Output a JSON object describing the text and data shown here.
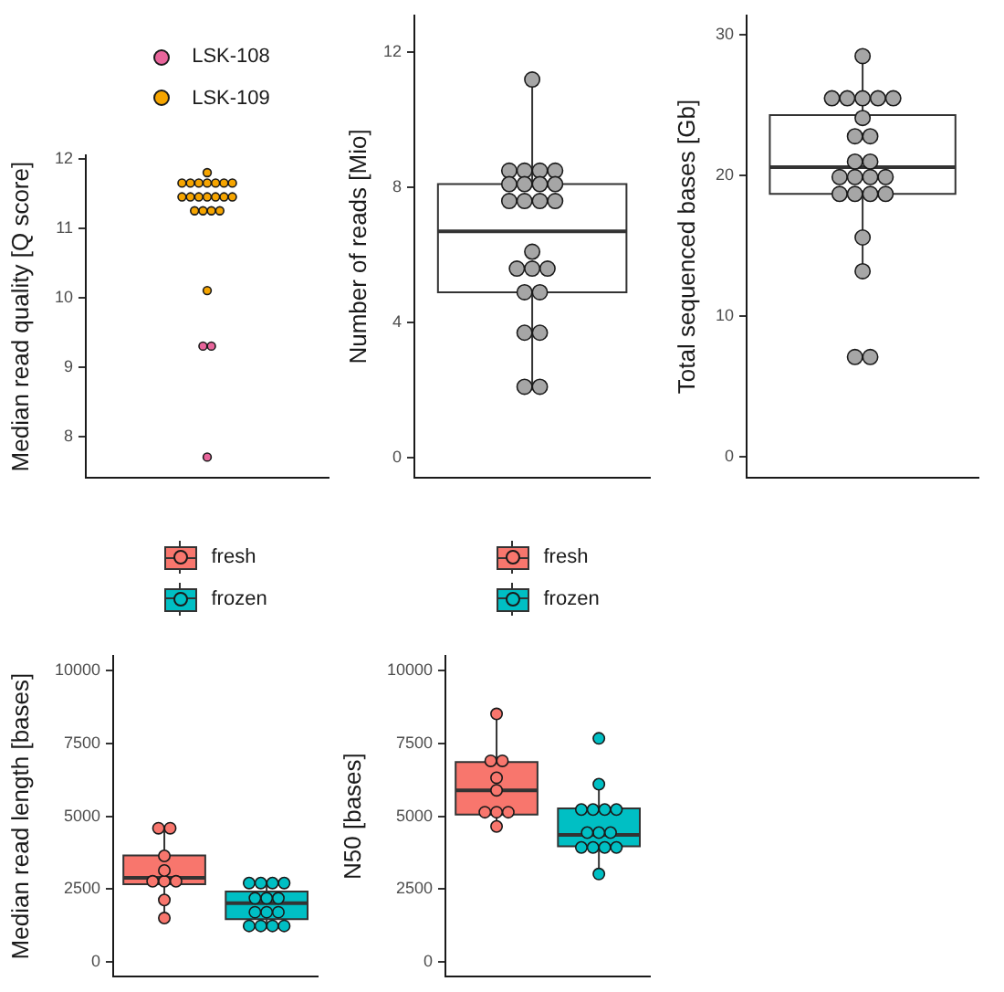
{
  "chart_data": [
    {
      "type": "scatter",
      "ylabel": "Median read quality [Q score]",
      "categories": [
        null
      ],
      "series": [
        {
          "name": "LSK-108",
          "color": "#e8659b",
          "x": [
            null,
            null,
            null
          ],
          "values": [
            9.3,
            9.3,
            7.7
          ]
        },
        {
          "name": "LSK-109",
          "color": "#f6a500",
          "x": [
            null,
            null,
            null,
            null,
            null,
            null,
            null,
            null,
            null,
            null,
            null,
            null,
            null,
            null,
            null,
            null,
            null,
            null,
            null,
            null
          ],
          "values": [
            11.8,
            11.65,
            11.65,
            11.65,
            11.65,
            11.65,
            11.65,
            11.65,
            11.45,
            11.45,
            11.45,
            11.45,
            11.45,
            11.45,
            11.45,
            11.25,
            11.25,
            11.25,
            11.25,
            10.1
          ]
        }
      ],
      "ylim": [
        7.4,
        12.05
      ],
      "yticks": [
        8,
        9,
        10,
        11,
        12
      ],
      "legend": "top",
      "marker": "circle"
    },
    {
      "type": "box",
      "ylabel": "Number of reads [Mio]",
      "categories": [
        null
      ],
      "series": [
        {
          "color": "#ffffff",
          "boxes": [
            {
              "low": 2.1,
              "q1": 4.9,
              "median": 6.7,
              "q3": 8.1,
              "high": 11.2
            }
          ]
        },
        {
          "type": "scatter",
          "color": "#a6a6a6",
          "x": [
            null,
            null,
            null,
            null,
            null,
            null,
            null,
            null,
            null,
            null,
            null,
            null,
            null,
            null,
            null,
            null,
            null,
            null,
            null,
            null,
            null,
            null,
            null
          ],
          "values": [
            11.2,
            8.5,
            8.5,
            8.5,
            8.5,
            8.1,
            8.1,
            8.1,
            8.1,
            7.6,
            7.6,
            7.6,
            7.6,
            6.1,
            5.6,
            5.6,
            5.6,
            4.9,
            4.9,
            3.7,
            3.7,
            2.1,
            2.1
          ]
        }
      ],
      "ylim": [
        -0.6,
        13.1
      ],
      "yticks": [
        0,
        4,
        8,
        12
      ],
      "marker": "circle"
    },
    {
      "type": "box",
      "ylabel": "Total sequenced bases [Gb]",
      "categories": [
        null
      ],
      "series": [
        {
          "color": "#ffffff",
          "boxes": [
            {
              "low": 13.2,
              "q1": 18.7,
              "median": 20.6,
              "q3": 24.3,
              "high": 28.5
            }
          ]
        },
        {
          "type": "scatter",
          "color": "#a6a6a6",
          "x": [
            null,
            null,
            null,
            null,
            null,
            null,
            null,
            null,
            null,
            null,
            null,
            null,
            null,
            null,
            null,
            null,
            null,
            null,
            null,
            null,
            null,
            null,
            null
          ],
          "values": [
            28.5,
            25.5,
            25.5,
            25.5,
            25.5,
            25.5,
            24.1,
            22.8,
            22.8,
            21.0,
            21.0,
            19.9,
            19.9,
            19.9,
            19.9,
            18.7,
            18.7,
            18.7,
            18.7,
            15.6,
            13.2,
            7.1,
            7.1
          ]
        }
      ],
      "ylim": [
        -1.5,
        31.4
      ],
      "yticks": [
        0,
        10,
        20,
        30
      ],
      "marker": "circle"
    },
    {
      "type": "box",
      "ylabel": "Median read length [bases]",
      "categories": [
        null,
        null
      ],
      "series": [
        {
          "colors": [
            "#f8766d",
            "#00bfc4"
          ],
          "boxes": [
            {
              "low": 1510,
              "q1": 2670,
              "median": 2890,
              "q3": 3660,
              "high": 4590
            },
            {
              "low": 1240,
              "q1": 1470,
              "median": 2020,
              "q3": 2420,
              "high": 2710
            }
          ]
        },
        {
          "type": "scatter",
          "name": "fresh",
          "color": "#f8766d",
          "values": [
            4590,
            null
          ]
        },
        {
          "type": "scatter",
          "color": "#f8766d",
          "values": [
            4590,
            null
          ]
        },
        {
          "type": "scatter",
          "color": "#f8766d",
          "values": [
            3640,
            null
          ]
        },
        {
          "type": "scatter",
          "color": "#f8766d",
          "values": [
            3140,
            null
          ]
        },
        {
          "type": "scatter",
          "color": "#f8766d",
          "values": [
            2770,
            null
          ]
        },
        {
          "type": "scatter",
          "color": "#f8766d",
          "values": [
            2770,
            null
          ]
        },
        {
          "type": "scatter",
          "color": "#f8766d",
          "values": [
            2770,
            null
          ]
        },
        {
          "type": "scatter",
          "color": "#f8766d",
          "values": [
            2130,
            null
          ]
        },
        {
          "type": "scatter",
          "color": "#f8766d",
          "values": [
            1510,
            null
          ]
        },
        {
          "type": "scatter",
          "name": "frozen",
          "color": "#00bfc4",
          "values": [
            null,
            2710
          ]
        },
        {
          "type": "scatter",
          "color": "#00bfc4",
          "values": [
            null,
            2710
          ]
        },
        {
          "type": "scatter",
          "color": "#00bfc4",
          "values": [
            null,
            2710
          ]
        },
        {
          "type": "scatter",
          "color": "#00bfc4",
          "values": [
            null,
            2710
          ]
        },
        {
          "type": "scatter",
          "color": "#00bfc4",
          "values": [
            null,
            2190
          ]
        },
        {
          "type": "scatter",
          "color": "#00bfc4",
          "values": [
            null,
            2190
          ]
        },
        {
          "type": "scatter",
          "color": "#00bfc4",
          "values": [
            null,
            2190
          ]
        },
        {
          "type": "scatter",
          "color": "#00bfc4",
          "values": [
            null,
            1710
          ]
        },
        {
          "type": "scatter",
          "color": "#00bfc4",
          "values": [
            null,
            1710
          ]
        },
        {
          "type": "scatter",
          "color": "#00bfc4",
          "values": [
            null,
            1710
          ]
        },
        {
          "type": "scatter",
          "color": "#00bfc4",
          "values": [
            null,
            1240
          ]
        },
        {
          "type": "scatter",
          "color": "#00bfc4",
          "values": [
            null,
            1240
          ]
        },
        {
          "type": "scatter",
          "color": "#00bfc4",
          "values": [
            null,
            1240
          ]
        },
        {
          "type": "scatter",
          "color": "#00bfc4",
          "values": [
            null,
            1240
          ]
        }
      ],
      "ylim": [
        -500,
        10500
      ],
      "yticks": [
        0,
        2500,
        5000,
        7500,
        10000
      ],
      "legend": "top",
      "marker": "circle"
    },
    {
      "type": "box",
      "ylabel": "N50 [bases]",
      "categories": [
        null,
        null
      ],
      "series": [
        {
          "colors": [
            "#f8766d",
            "#00bfc4"
          ],
          "boxes": [
            {
              "low": 4650,
              "q1": 5060,
              "median": 5890,
              "q3": 6860,
              "high": 8510
            },
            {
              "low": 3020,
              "q1": 3970,
              "median": 4360,
              "q3": 5270,
              "high": 6100
            }
          ]
        },
        {
          "type": "scatter",
          "name": "fresh",
          "color": "#f8766d",
          "values": [
            8510,
            null
          ]
        },
        {
          "type": "scatter",
          "color": "#f8766d",
          "values": [
            6900,
            null
          ]
        },
        {
          "type": "scatter",
          "color": "#f8766d",
          "values": [
            6900,
            null
          ]
        },
        {
          "type": "scatter",
          "color": "#f8766d",
          "values": [
            6320,
            null
          ]
        },
        {
          "type": "scatter",
          "color": "#f8766d",
          "values": [
            5890,
            null
          ]
        },
        {
          "type": "scatter",
          "color": "#f8766d",
          "values": [
            5140,
            null
          ]
        },
        {
          "type": "scatter",
          "color": "#f8766d",
          "values": [
            5140,
            null
          ]
        },
        {
          "type": "scatter",
          "color": "#f8766d",
          "values": [
            5140,
            null
          ]
        },
        {
          "type": "scatter",
          "color": "#f8766d",
          "values": [
            4650,
            null
          ]
        },
        {
          "type": "scatter",
          "name": "frozen",
          "color": "#00bfc4",
          "values": [
            null,
            7670
          ]
        },
        {
          "type": "scatter",
          "color": "#00bfc4",
          "values": [
            null,
            6100
          ]
        },
        {
          "type": "scatter",
          "color": "#00bfc4",
          "values": [
            null,
            5230
          ]
        },
        {
          "type": "scatter",
          "color": "#00bfc4",
          "values": [
            null,
            5230
          ]
        },
        {
          "type": "scatter",
          "color": "#00bfc4",
          "values": [
            null,
            5230
          ]
        },
        {
          "type": "scatter",
          "color": "#00bfc4",
          "values": [
            null,
            5230
          ]
        },
        {
          "type": "scatter",
          "color": "#00bfc4",
          "values": [
            null,
            4440
          ]
        },
        {
          "type": "scatter",
          "color": "#00bfc4",
          "values": [
            null,
            4440
          ]
        },
        {
          "type": "scatter",
          "color": "#00bfc4",
          "values": [
            null,
            4440
          ]
        },
        {
          "type": "scatter",
          "color": "#00bfc4",
          "values": [
            null,
            3930
          ]
        },
        {
          "type": "scatter",
          "color": "#00bfc4",
          "values": [
            null,
            3930
          ]
        },
        {
          "type": "scatter",
          "color": "#00bfc4",
          "values": [
            null,
            3930
          ]
        },
        {
          "type": "scatter",
          "color": "#00bfc4",
          "values": [
            null,
            3930
          ]
        },
        {
          "type": "scatter",
          "color": "#00bfc4",
          "values": [
            null,
            3020
          ]
        }
      ],
      "ylim": [
        -500,
        10500
      ],
      "yticks": [
        0,
        2500,
        5000,
        7500,
        10000
      ],
      "legend": "top",
      "marker": "circle"
    }
  ]
}
